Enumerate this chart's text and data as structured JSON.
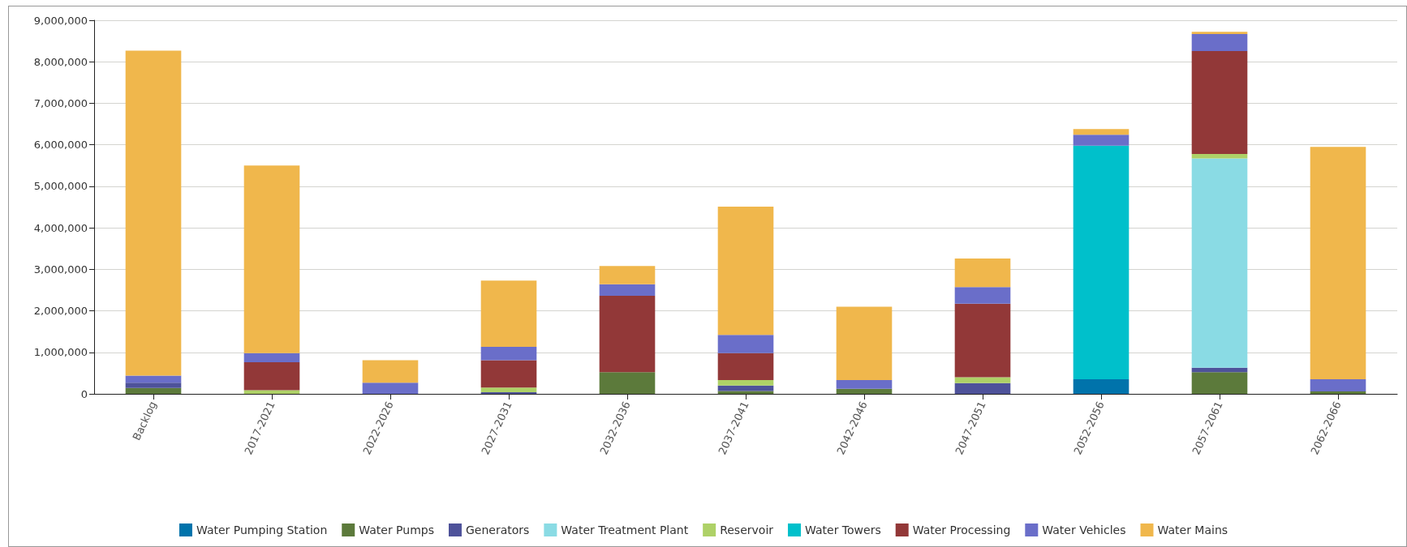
{
  "chart_data": {
    "type": "bar",
    "stacked": true,
    "categories": [
      "Backlog",
      "2017-2021",
      "2022-2026",
      "2027-2031",
      "2032-2036",
      "2037-2041",
      "2042-2046",
      "2047-2051",
      "2052-2056",
      "2057-2061",
      "2062-2066"
    ],
    "series": [
      {
        "name": "Water Pumping Station",
        "color": "#0073ab",
        "values": [
          0,
          0,
          0,
          0,
          0,
          0,
          0,
          0,
          350000,
          0,
          0
        ]
      },
      {
        "name": "Water Pumps",
        "color": "#5c7a3b",
        "values": [
          140000,
          0,
          0,
          0,
          520000,
          70000,
          120000,
          0,
          0,
          520000,
          60000
        ]
      },
      {
        "name": "Generators",
        "color": "#4e529a",
        "values": [
          130000,
          0,
          0,
          40000,
          0,
          130000,
          0,
          260000,
          0,
          110000,
          0
        ]
      },
      {
        "name": "Water Treatment Plant",
        "color": "#8adbe4",
        "values": [
          0,
          0,
          0,
          0,
          0,
          0,
          0,
          0,
          0,
          5040000,
          0
        ]
      },
      {
        "name": "Reservoir",
        "color": "#aed167",
        "values": [
          0,
          90000,
          0,
          110000,
          0,
          130000,
          0,
          140000,
          0,
          110000,
          0
        ]
      },
      {
        "name": "Water Towers",
        "color": "#00c0cb",
        "values": [
          0,
          0,
          0,
          0,
          0,
          0,
          0,
          0,
          5630000,
          0,
          0
        ]
      },
      {
        "name": "Water Processing",
        "color": "#923838",
        "values": [
          0,
          670000,
          0,
          660000,
          1840000,
          650000,
          0,
          1770000,
          0,
          2480000,
          0
        ]
      },
      {
        "name": "Water Vehicles",
        "color": "#6a6ec9",
        "values": [
          170000,
          220000,
          270000,
          320000,
          280000,
          440000,
          210000,
          400000,
          260000,
          410000,
          290000
        ]
      },
      {
        "name": "Water Mains",
        "color": "#f0b74c",
        "values": [
          7830000,
          4520000,
          540000,
          1600000,
          440000,
          3090000,
          1770000,
          690000,
          140000,
          50000,
          5600000
        ]
      }
    ],
    "ylim": [
      0,
      9000000
    ],
    "yticks": [
      {
        "value": 0,
        "label": "0"
      },
      {
        "value": 1000000,
        "label": "1,000,000"
      },
      {
        "value": 2000000,
        "label": "2,000,000"
      },
      {
        "value": 3000000,
        "label": "3,000,000"
      },
      {
        "value": 4000000,
        "label": "4,000,000"
      },
      {
        "value": 5000000,
        "label": "5,000,000"
      },
      {
        "value": 6000000,
        "label": "6,000,000"
      },
      {
        "value": 7000000,
        "label": "7,000,000"
      },
      {
        "value": 8000000,
        "label": "8,000,000"
      },
      {
        "value": 9000000,
        "label": "9,000,000"
      }
    ],
    "grid": "y",
    "legend": "bottom"
  }
}
